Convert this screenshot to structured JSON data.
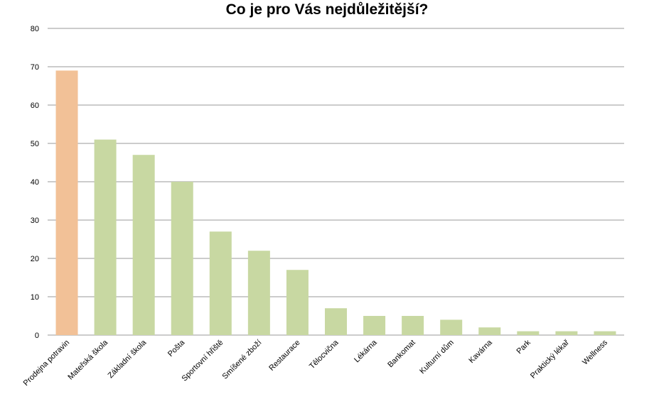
{
  "chart_data": {
    "type": "bar",
    "title": "Co je pro Vás nejdůležitější?",
    "xlabel": "",
    "ylabel": "",
    "ylim": [
      0,
      80
    ],
    "yticks": [
      0,
      10,
      20,
      30,
      40,
      50,
      60,
      70,
      80
    ],
    "grid": true,
    "legend": "none",
    "categories": [
      "Prodejna potravin",
      "Mateřská škola",
      "Základní škola",
      "Pošta",
      "Sportovní hřiště",
      "Smíšené zboží",
      "Restaurace",
      "Tělocvična",
      "Lékárna",
      "Bankomat",
      "Kulturní dům",
      "Kavárna",
      "Park",
      "Praktický lékař",
      "Wellness"
    ],
    "values": [
      69,
      51,
      47,
      40,
      27,
      22,
      17,
      7,
      5,
      5,
      4,
      2,
      1,
      1,
      1
    ],
    "colors": {
      "highlight": "#f2c197",
      "default": "#c8d8a2",
      "grid": "#9a9a9a"
    }
  }
}
